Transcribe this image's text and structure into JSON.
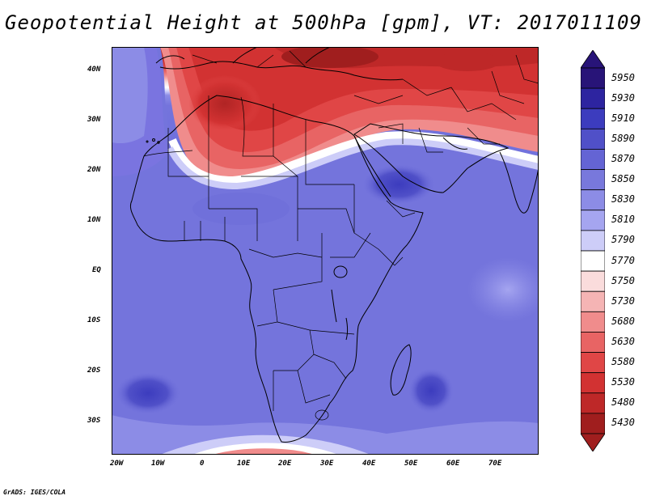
{
  "title": "Geopotential Height at 500hPa [gpm], VT: 2017011109",
  "footer": "GrADS: IGES/COLA",
  "map": {
    "projection": "latlon",
    "lon_range": [
      -22,
      80
    ],
    "lat_range": [
      -37,
      45
    ],
    "y_ticks": [
      "40N",
      "30N",
      "20N",
      "10N",
      "EQ",
      "10S",
      "20S",
      "30S"
    ],
    "x_ticks": [
      "20W",
      "10W",
      "0",
      "10E",
      "20E",
      "30E",
      "40E",
      "50E",
      "60E",
      "70E"
    ]
  },
  "colorbar": {
    "labels": [
      "5950",
      "5930",
      "5910",
      "5890",
      "5870",
      "5850",
      "5830",
      "5810",
      "5790",
      "5770",
      "5750",
      "5730",
      "5680",
      "5630",
      "5580",
      "5530",
      "5480",
      "5430"
    ],
    "colors": [
      "#281478",
      "#2d24a0",
      "#3c3cbe",
      "#5050c8",
      "#6464d4",
      "#7878dc",
      "#8c8ce6",
      "#a5a5f0",
      "#cdcdf8",
      "#ffffff",
      "#fadcdc",
      "#f5b4b4",
      "#f08c8c",
      "#e86464",
      "#e04646",
      "#d23232",
      "#be2828",
      "#a01e1e"
    ]
  },
  "colors": {
    "background": "#ffffff",
    "ocean_default": "#7c74e4",
    "coastline": "#000000"
  }
}
